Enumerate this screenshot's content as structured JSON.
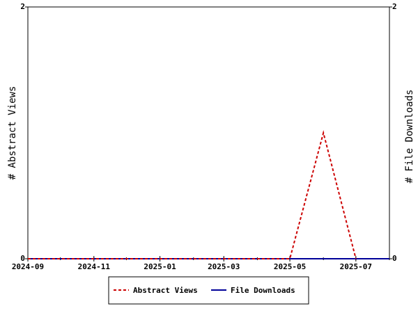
{
  "chart_data": {
    "type": "line",
    "x": [
      "2024-09",
      "2024-10",
      "2024-11",
      "2024-12",
      "2025-01",
      "2025-02",
      "2025-03",
      "2025-04",
      "2025-05",
      "2025-06",
      "2025-07",
      "2025-08"
    ],
    "series": [
      {
        "name": "Abstract Views",
        "color": "#cc0000",
        "dash": true,
        "values": [
          0,
          0,
          0,
          0,
          0,
          0,
          0,
          0,
          0,
          1,
          0,
          null
        ]
      },
      {
        "name": "File Downloads",
        "color": "#000099",
        "axis": "y2",
        "values": [
          0,
          0,
          0,
          0,
          0,
          0,
          0,
          0,
          0,
          0,
          0,
          0
        ]
      }
    ],
    "xlim": [
      "2024-09",
      "2025-08"
    ],
    "xticks": [
      "2024-09",
      "2024-11",
      "2025-01",
      "2025-03",
      "2025-05",
      "2025-07"
    ],
    "ylabel": "# Abstract Views",
    "ylim": [
      0,
      2
    ],
    "yticks": [
      0,
      2
    ],
    "y2label": "# File Downloads",
    "y2lim": [
      0,
      2
    ],
    "y2ticks": [
      0,
      2
    ]
  }
}
